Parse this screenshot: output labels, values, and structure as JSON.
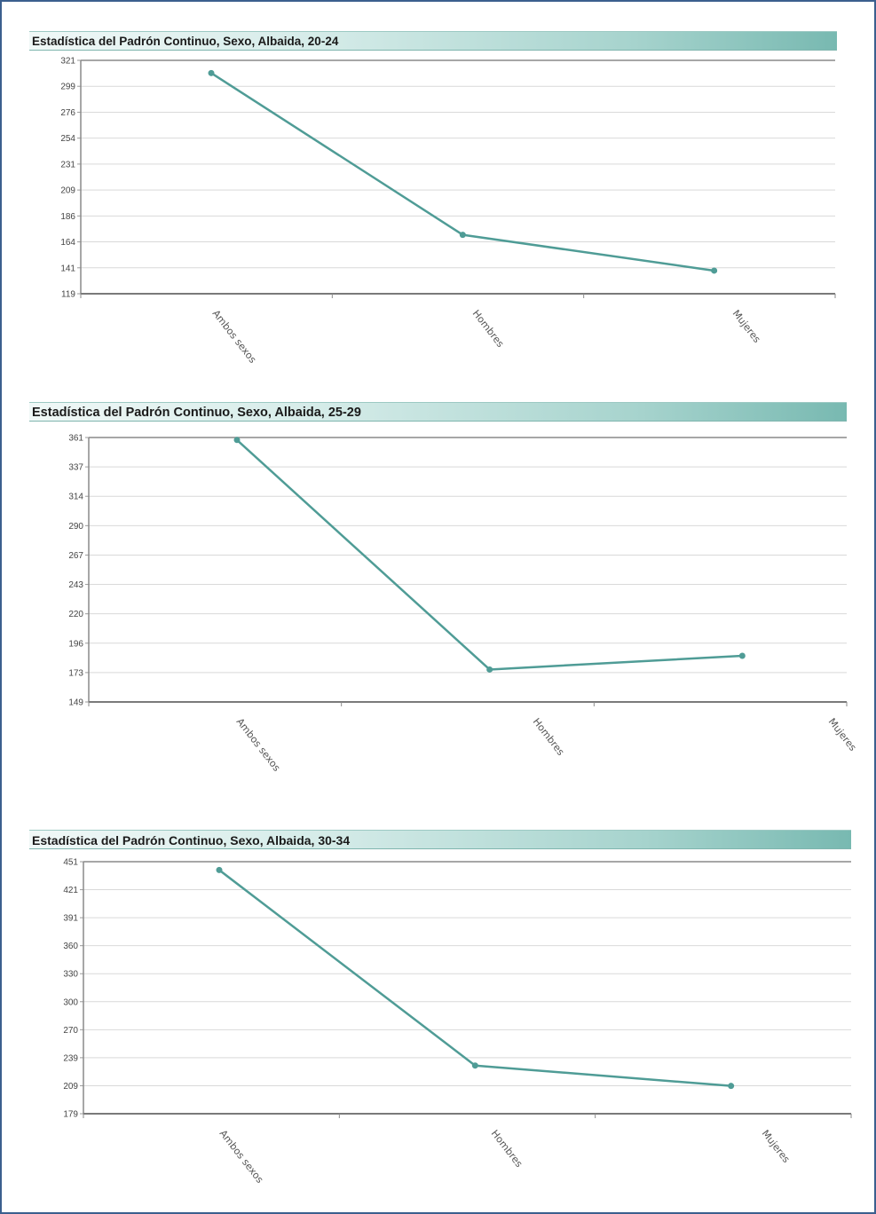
{
  "chart_data": [
    {
      "type": "line",
      "title": "Estadística del Padrón Continuo, Sexo, Albaida, 20-24",
      "categories": [
        "Ambos sexos",
        "Hombres",
        "Mujeres"
      ],
      "values": [
        310,
        170,
        139
      ],
      "y_ticks": [
        "321",
        "299",
        "276",
        "254",
        "231",
        "209",
        "186",
        "164",
        "141",
        "119"
      ],
      "ylim": [
        119,
        321
      ],
      "grid": true,
      "color": "#4f9c96"
    },
    {
      "type": "line",
      "title": "Estadística del Padrón Continuo, Sexo, Albaida, 25-29",
      "categories": [
        "Ambos sexos",
        "Hombres",
        "Mujeres"
      ],
      "values": [
        359,
        175,
        186
      ],
      "y_ticks": [
        "361",
        "337",
        "314",
        "290",
        "267",
        "243",
        "220",
        "196",
        "173",
        "149"
      ],
      "ylim": [
        149,
        361
      ],
      "grid": true,
      "color": "#4f9c96"
    },
    {
      "type": "line",
      "title": "Estadística del Padrón Continuo, Sexo, Albaida, 30-34",
      "categories": [
        "Ambos sexos",
        "Hombres",
        "Mujeres"
      ],
      "values": [
        442,
        231,
        209
      ],
      "y_ticks": [
        "451",
        "421",
        "391",
        "360",
        "330",
        "300",
        "270",
        "239",
        "209",
        "179"
      ],
      "ylim": [
        179,
        451
      ],
      "grid": true,
      "color": "#4f9c96"
    }
  ]
}
